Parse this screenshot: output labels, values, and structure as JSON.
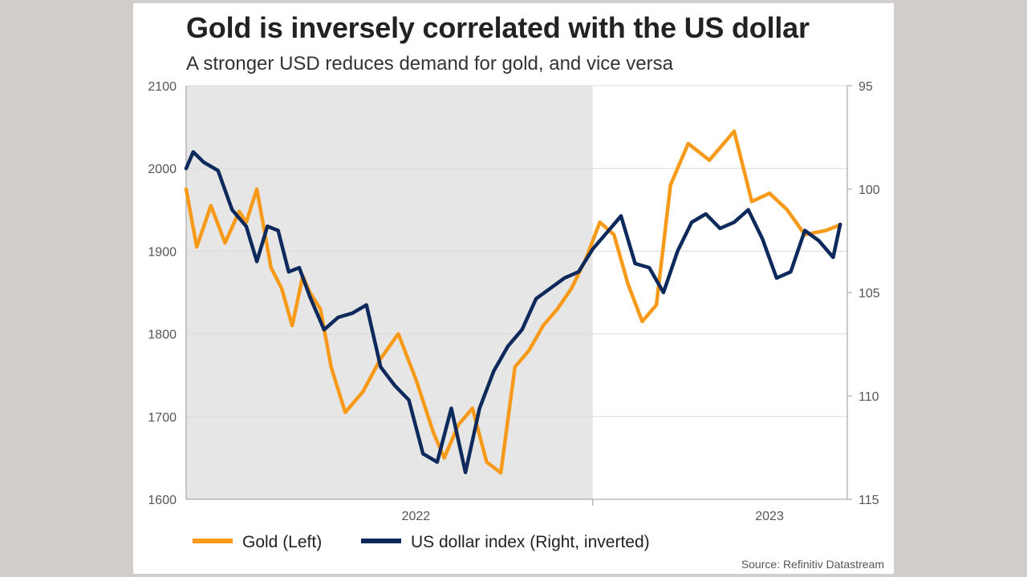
{
  "chart_data": {
    "type": "line",
    "title": "Gold is inversely correlated with the US dollar",
    "subtitle": "A stronger USD reduces demand for gold, and vice versa",
    "source": "Source: Refinitiv Datastream",
    "x_axis": {
      "range": [
        2021.85,
        2023.72
      ],
      "tick_labels": [
        {
          "label": "2022",
          "x": 2022.5
        },
        {
          "label": "2023",
          "x": 2023.5
        }
      ],
      "year_dividers": [
        2023.0
      ]
    },
    "y_left": {
      "label": "Gold (Left)",
      "range": [
        1600,
        2100
      ],
      "ticks": [
        "1600",
        "1700",
        "1800",
        "1900",
        "2000",
        "2100"
      ]
    },
    "y_right": {
      "label": "US dollar index (Right, inverted)",
      "range": [
        95,
        115
      ],
      "inverted": true,
      "ticks": [
        "95",
        "100",
        "105",
        "110",
        "115"
      ]
    },
    "shaded_region": {
      "from": 2021.85,
      "to": 2023.0
    },
    "series": [
      {
        "name": "Gold (Left)",
        "axis": "left",
        "color": "#F79A1A",
        "x": [
          2021.85,
          2021.88,
          2021.92,
          2021.96,
          2022.0,
          2022.02,
          2022.05,
          2022.09,
          2022.12,
          2022.15,
          2022.18,
          2022.2,
          2022.23,
          2022.26,
          2022.3,
          2022.35,
          2022.4,
          2022.45,
          2022.5,
          2022.55,
          2022.58,
          2022.62,
          2022.66,
          2022.7,
          2022.74,
          2022.78,
          2022.82,
          2022.86,
          2022.9,
          2022.94,
          2022.98,
          2023.02,
          2023.06,
          2023.1,
          2023.14,
          2023.18,
          2023.22,
          2023.27,
          2023.33,
          2023.4,
          2023.45,
          2023.5,
          2023.55,
          2023.6,
          2023.66,
          2023.7
        ],
        "values": [
          1975,
          1905,
          1955,
          1910,
          1948,
          1935,
          1975,
          1880,
          1855,
          1810,
          1870,
          1850,
          1830,
          1760,
          1705,
          1730,
          1770,
          1800,
          1745,
          1680,
          1650,
          1690,
          1710,
          1645,
          1632,
          1760,
          1780,
          1810,
          1830,
          1855,
          1890,
          1935,
          1920,
          1860,
          1815,
          1835,
          1980,
          2030,
          2010,
          2045,
          1960,
          1970,
          1950,
          1920,
          1925,
          1932
        ]
      },
      {
        "name": "US dollar index (Right, inverted)",
        "axis": "right",
        "color": "#0E2A5C",
        "x": [
          2021.85,
          2021.87,
          2021.9,
          2021.94,
          2021.98,
          2022.02,
          2022.05,
          2022.08,
          2022.11,
          2022.14,
          2022.17,
          2022.2,
          2022.24,
          2022.28,
          2022.32,
          2022.36,
          2022.4,
          2022.44,
          2022.48,
          2022.52,
          2022.56,
          2022.6,
          2022.64,
          2022.68,
          2022.72,
          2022.76,
          2022.8,
          2022.84,
          2022.88,
          2022.92,
          2022.96,
          2023.0,
          2023.04,
          2023.08,
          2023.12,
          2023.16,
          2023.2,
          2023.24,
          2023.28,
          2023.32,
          2023.36,
          2023.4,
          2023.44,
          2023.48,
          2023.52,
          2023.56,
          2023.6,
          2023.64,
          2023.68,
          2023.7
        ],
        "values": [
          99.0,
          98.2,
          98.7,
          99.1,
          101.0,
          101.8,
          103.5,
          101.8,
          102.0,
          104.0,
          103.8,
          105.2,
          106.8,
          106.2,
          106.0,
          105.6,
          108.6,
          109.5,
          110.2,
          112.8,
          113.2,
          110.6,
          113.7,
          110.6,
          108.8,
          107.6,
          106.8,
          105.3,
          104.8,
          104.3,
          104.0,
          102.9,
          102.1,
          101.3,
          103.6,
          103.8,
          105.0,
          103.0,
          101.6,
          101.2,
          101.9,
          101.6,
          101.0,
          102.4,
          104.3,
          104.0,
          102.0,
          102.5,
          103.3,
          101.7
        ]
      }
    ],
    "legend": [
      "Gold (Left)",
      "US dollar index (Right, inverted)"
    ],
    "legend_position": "bottom"
  }
}
